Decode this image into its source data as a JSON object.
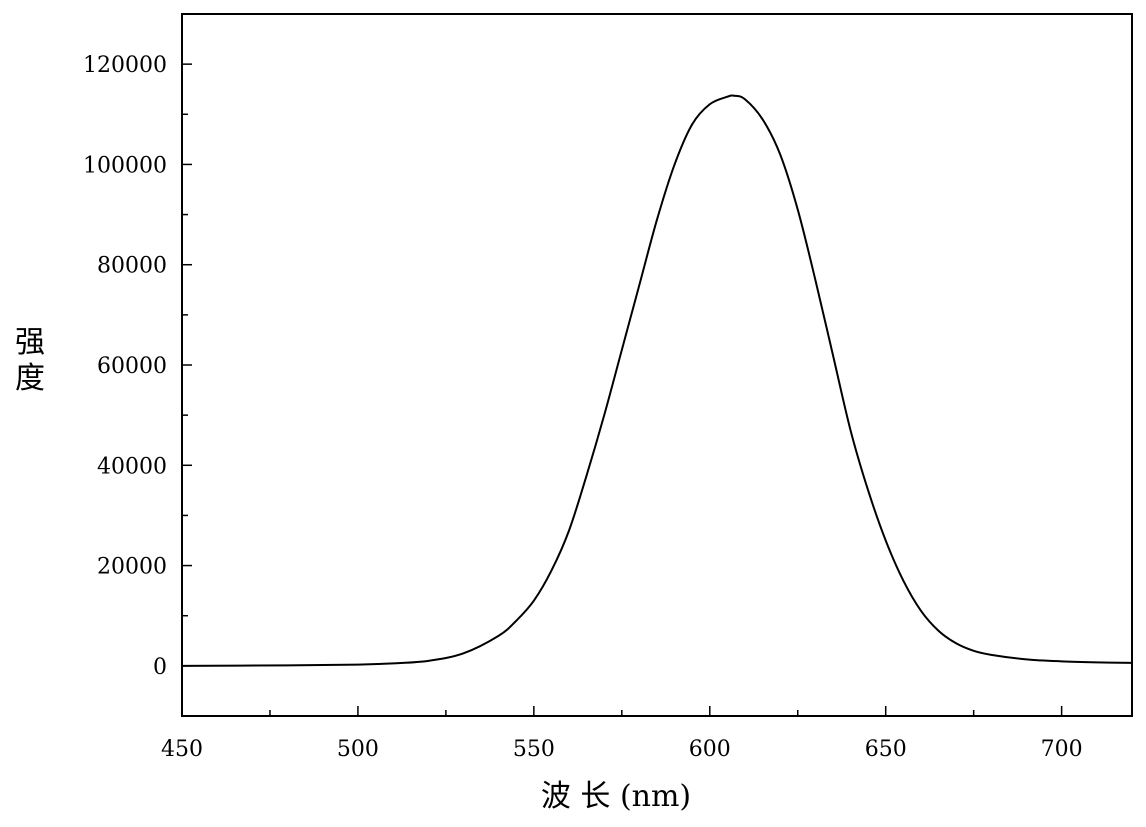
{
  "chart_data": {
    "type": "line",
    "xlabel": "波 长 (nm)",
    "ylabel": "强度",
    "xlim": [
      450,
      720
    ],
    "ylim": [
      -10000,
      130000
    ],
    "xticks": [
      450,
      500,
      550,
      600,
      650,
      700
    ],
    "yticks": [
      0,
      20000,
      40000,
      60000,
      80000,
      100000,
      120000
    ],
    "grid": false,
    "series": [
      {
        "color": "#000000",
        "x": [
          450,
          480,
          500,
          510,
          520,
          530,
          540,
          545,
          550,
          555,
          560,
          565,
          570,
          575,
          580,
          585,
          590,
          595,
          600,
          605,
          607,
          610,
          615,
          620,
          625,
          630,
          635,
          640,
          645,
          650,
          655,
          660,
          665,
          670,
          675,
          680,
          690,
          700,
          710,
          720
        ],
        "y": [
          0,
          100,
          250,
          500,
          1000,
          2500,
          6000,
          9000,
          13000,
          19000,
          27000,
          38000,
          50000,
          63000,
          76000,
          89000,
          100000,
          108000,
          112000,
          113500,
          113700,
          113000,
          109000,
          102000,
          91000,
          77000,
          62000,
          47000,
          35000,
          25000,
          17000,
          11000,
          7000,
          4500,
          3000,
          2200,
          1300,
          900,
          700,
          600
        ]
      }
    ]
  }
}
